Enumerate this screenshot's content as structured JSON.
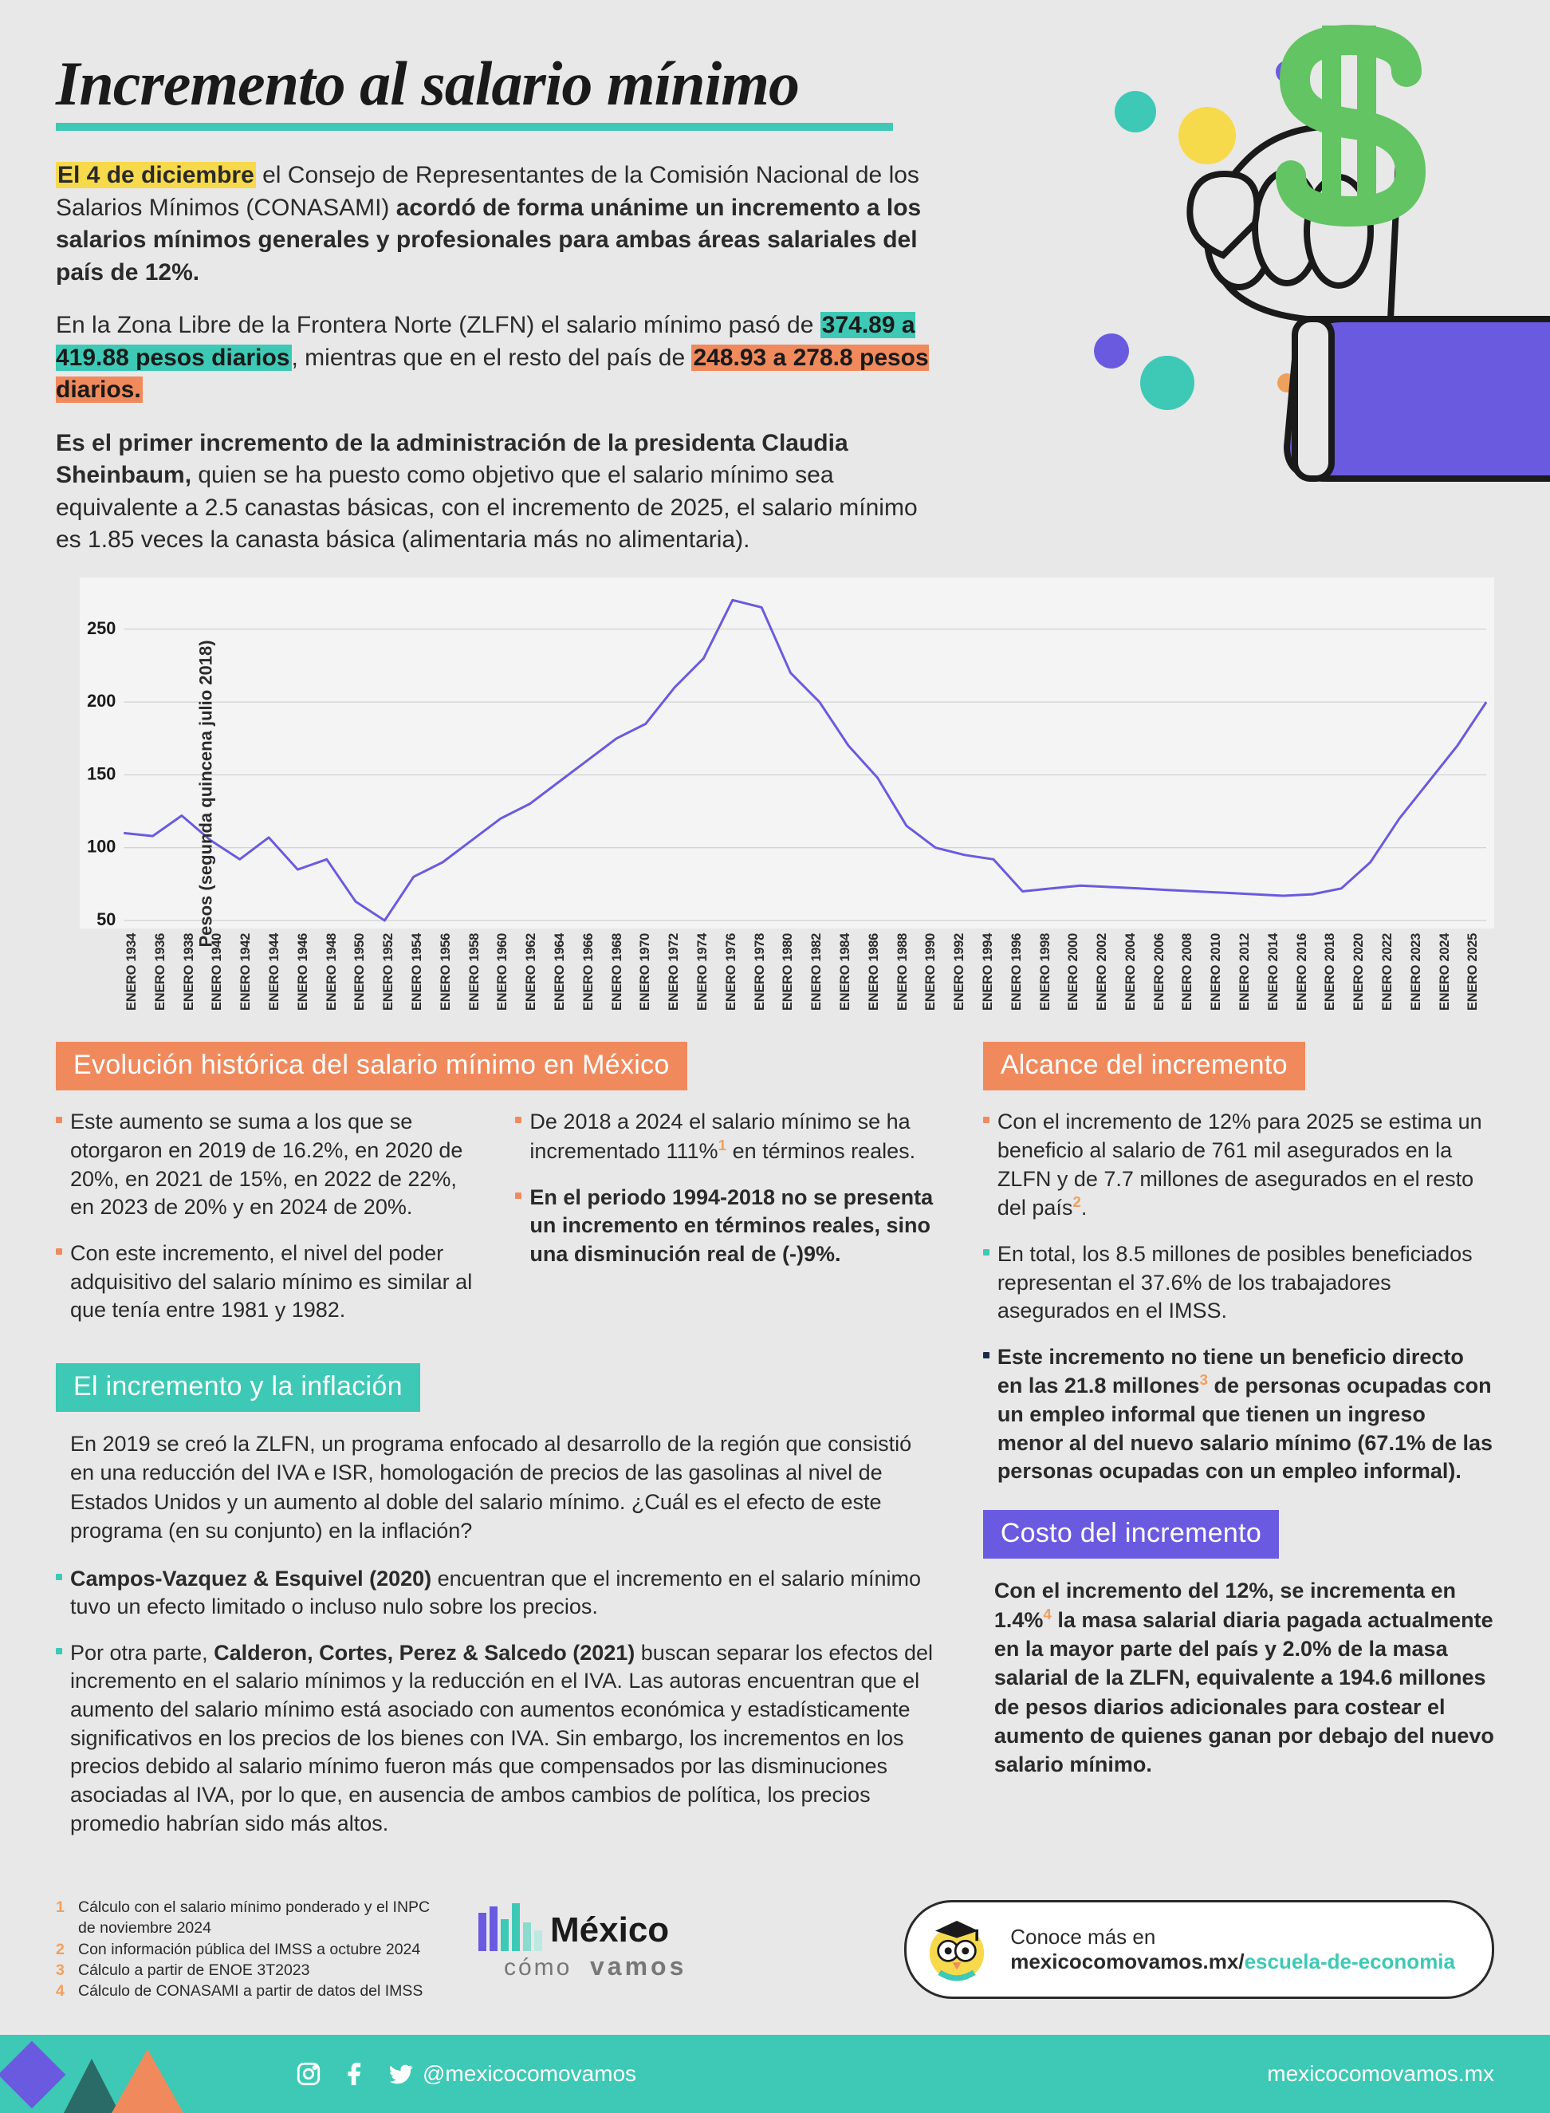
{
  "page": {
    "title": "Incremento al salario mínimo",
    "title_underline_color": "#3dc9b5",
    "background_color": "#e8e8e8"
  },
  "intro": {
    "p1_pre": "El 4 de diciembre",
    "p1_mid": "  el Consejo de Representantes de la Comisión Nacional de los Salarios Mínimos (CONASAMI) ",
    "p1_bold": "acordó de forma unánime un incremento a los salarios mínimos generales y profesionales para ambas áreas salariales del país de 12%.",
    "p2_pre": "En la Zona Libre de la Frontera Norte (ZLFN) el salario mínimo pasó de ",
    "p2_hl_teal": "374.89 a 419.88 pesos diarios",
    "p2_mid": ", mientras que en el resto del país de ",
    "p2_hl_orange": "248.93 a 278.8 pesos diarios.",
    "p3_bold": "Es el primer incremento de la administración de la presidenta Claudia Sheinbaum,",
    "p3_rest": " quien se ha puesto como objetivo que el salario mínimo sea equivalente a 2.5 canastas básicas, con el incremento de 2025, el salario mínimo es 1.85 veces la canasta básica (alimentaria más no alimentaria)."
  },
  "art_colors": {
    "dollar": "#62c462",
    "hand_fill": "#e8e8e8",
    "hand_stroke": "#1a1a1a",
    "sleeve": "#6a5ae0",
    "dots": [
      "#3dc9b5",
      "#f7d94c",
      "#6a5ae0",
      "#f08a5d",
      "#1aa89a"
    ]
  },
  "chart": {
    "ylabel": "Pesos (segunda quincena julio 2018)",
    "ylim": [
      50,
      280
    ],
    "yticks": [
      50,
      100,
      150,
      200,
      250
    ],
    "grid_color": "#c9c9c9",
    "bg_color": "#f4f4f4",
    "line_color": "#6a5ae0",
    "line_width": 3,
    "years": [
      1934,
      1936,
      1938,
      1940,
      1942,
      1944,
      1946,
      1948,
      1950,
      1952,
      1954,
      1956,
      1958,
      1960,
      1962,
      1964,
      1966,
      1968,
      1970,
      1972,
      1974,
      1976,
      1978,
      1980,
      1982,
      1984,
      1986,
      1988,
      1990,
      1992,
      1994,
      1996,
      1998,
      2000,
      2002,
      2004,
      2006,
      2008,
      2010,
      2012,
      2014,
      2016,
      2018,
      2020,
      2022,
      2023,
      2024,
      2025
    ],
    "xlabel_prefix": "ENERO ",
    "values": [
      110,
      108,
      122,
      105,
      92,
      107,
      85,
      92,
      63,
      50,
      80,
      90,
      105,
      120,
      130,
      145,
      160,
      175,
      185,
      210,
      230,
      270,
      265,
      220,
      200,
      170,
      148,
      115,
      100,
      95,
      92,
      70,
      72,
      74,
      73,
      72,
      71,
      70,
      69,
      68,
      67,
      68,
      72,
      90,
      120,
      145,
      170,
      200
    ]
  },
  "sections": {
    "evolucion": {
      "title": "Evolución histórica del salario mínimo en México",
      "bg": "#f08a5d",
      "colA": [
        {
          "text": "Este aumento se suma a los que se otorgaron en 2019 de 16.2%, en 2020 de 20%, en 2021 de 15%, en 2022 de 22%, en 2023 de 20% y en 2024 de 20%."
        },
        {
          "text": "Con este incremento, el nivel del poder adquisitivo del salario mínimo es similar al que tenía entre 1981 y 1982."
        }
      ],
      "colB": [
        {
          "pre": "De 2018 a 2024 el salario mínimo se ha incrementado 111%",
          "sup": "1",
          "post": " en términos reales."
        },
        {
          "bold": "En el periodo 1994-2018 no se presenta un incremento en términos reales, sino una disminución real de (-)9%."
        }
      ]
    },
    "alcance": {
      "title": "Alcance del incremento",
      "bg": "#f08a5d",
      "items": [
        {
          "pre": "Con el incremento de 12% para 2025 se estima un beneficio al salario de 761 mil asegurados en la ZLFN y de 7.7 millones de asegurados en el resto del país",
          "sup": "2",
          "post": "."
        },
        {
          "text": "En total, los 8.5 millones de posibles beneficiados representan el 37.6% de los trabajadores asegurados en el IMSS."
        },
        {
          "bold_pre": "Este incremento no tiene un beneficio directo en las 21.8 millones",
          "sup": "3",
          "bold_post": " de personas ocupadas con un empleo informal que tienen un ingreso menor al del nuevo salario mínimo (67.1% de las personas ocupadas con un empleo informal)."
        }
      ]
    },
    "inflacion": {
      "title": "El incremento y la inflación",
      "bg": "#3dc9b5",
      "intro": "En 2019 se creó la ZLFN, un programa enfocado al desarrollo de la región que consistió en una reducción del IVA e ISR, homologación de precios de las gasolinas al nivel de Estados Unidos y un aumento al doble del salario mínimo. ¿Cuál es el efecto de este programa (en su conjunto) en la inflación?",
      "items": [
        {
          "bold": "Campos-Vazquez & Esquivel (2020)",
          "rest": " encuentran que el incremento en el salario mínimo tuvo un efecto limitado o incluso nulo sobre los precios."
        },
        {
          "pre": "Por otra parte, ",
          "bold": "Calderon, Cortes, Perez & Salcedo (2021)",
          "rest": " buscan separar los efectos del incremento en el salario mínimos y la reducción en el IVA.  Las autoras encuentran que el aumento del salario mínimo está asociado con aumentos económica y estadísticamente significativos en los precios de los bienes con IVA. Sin embargo, los incrementos en los precios debido al salario mínimo fueron más que compensados por las disminuciones asociadas al IVA, por lo que, en ausencia de ambos cambios de política, los precios promedio habrían sido más altos."
        }
      ]
    },
    "costo": {
      "title": "Costo del incremento",
      "bg": "#6a5ae0",
      "body_pre": "Con el incremento del 12%, se incrementa en 1.4%",
      "sup": "4",
      "body_post": " la masa salarial diaria pagada actualmente en la mayor parte del país y 2.0% de la masa salarial de la ZLFN, equivalente a 194.6 millones de pesos diarios adicionales para costear el aumento de quienes ganan por debajo del nuevo salario mínimo."
    }
  },
  "footnotes": [
    "Cálculo con el salario mínimo ponderado y el INPC de noviembre 2024",
    "Con información pública del IMSS a octubre 2024",
    "Cálculo a partir de ENOE 3T2023",
    "Cálculo de CONASAMI a partir de datos del IMSS"
  ],
  "logo": {
    "line1": "México",
    "line2": "cómo",
    "line3": "vamos"
  },
  "badge": {
    "line1": "Conoce más en",
    "domain": "mexicocomovamos.mx/",
    "slug": "escuela-de-economia"
  },
  "footer": {
    "handle": "@mexicocomovamos",
    "url": "mexicocomovamos.mx",
    "bar_color": "#3dc9b5",
    "shape_colors": {
      "diamond": "#6a5ae0",
      "tri1": "#2a6a67",
      "tri2": "#f08a5d"
    }
  }
}
